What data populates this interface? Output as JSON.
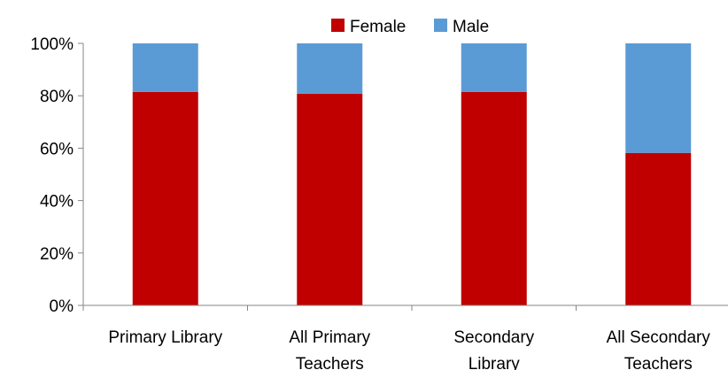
{
  "chart_data": {
    "type": "bar",
    "stacked": true,
    "percent_stacked": true,
    "categories": [
      "Primary Library",
      "All Primary Teachers",
      "Secondary Library",
      "All Secondary Teachers"
    ],
    "category_label_lines": [
      [
        "Primary Library"
      ],
      [
        "All Primary",
        "Teachers"
      ],
      [
        "Secondary",
        "Library"
      ],
      [
        "All Secondary",
        "Teachers"
      ]
    ],
    "series": [
      {
        "name": "Female",
        "color": "#c00000",
        "values": [
          81.5,
          80.8,
          81.5,
          58.2
        ]
      },
      {
        "name": "Male",
        "color": "#5b9bd5",
        "values": [
          18.5,
          19.2,
          18.5,
          41.8
        ]
      }
    ],
    "ylim": [
      0,
      100
    ],
    "y_ticks": [
      0,
      20,
      40,
      60,
      80,
      100
    ],
    "y_tick_labels": [
      "0%",
      "20%",
      "40%",
      "60%",
      "80%",
      "100%"
    ],
    "grid": false,
    "legend": "top-center",
    "title": "",
    "xlabel": "",
    "ylabel": ""
  }
}
